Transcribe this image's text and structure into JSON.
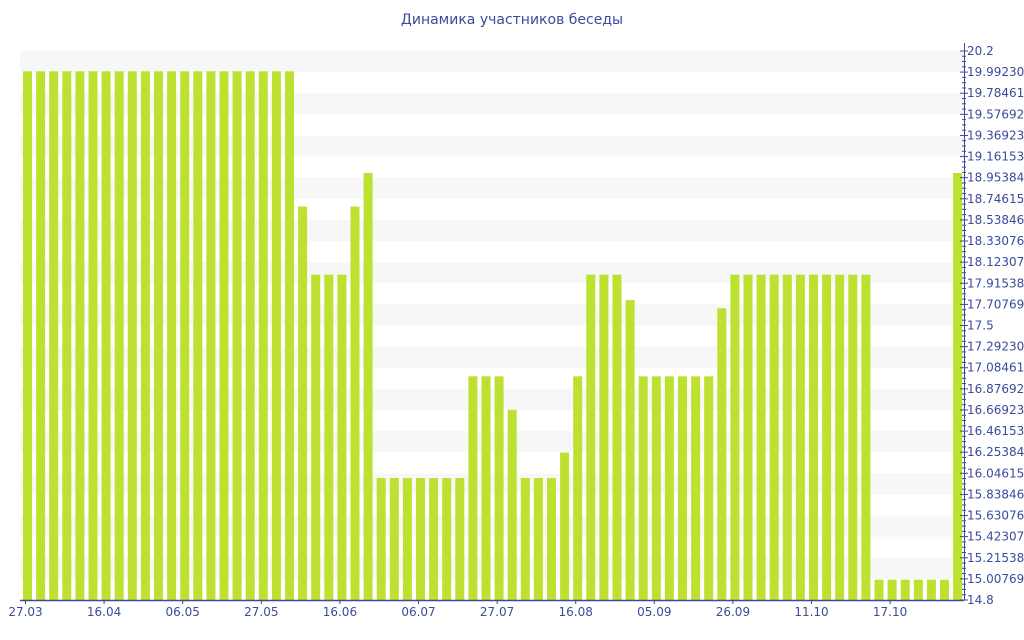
{
  "chart_data": {
    "type": "bar",
    "title": "Динамика участников беседы",
    "xlabel": "",
    "ylabel": "",
    "ylim": [
      14.8,
      20.2
    ],
    "y_axis_position": "right",
    "grid": "alternating horizontal bands",
    "bar_color": "#bde130",
    "axis_color": "#3b4b9b",
    "values": [
      20,
      20,
      20,
      20,
      20,
      20,
      20,
      20,
      20,
      20,
      20,
      20,
      20,
      20,
      20,
      20,
      20,
      20,
      20,
      20,
      20,
      18.67,
      18,
      18,
      18,
      18.67,
      19,
      16,
      16,
      16,
      16,
      16,
      16,
      16,
      17,
      17,
      17,
      16.67,
      16,
      16,
      16,
      16.25,
      17,
      18,
      18,
      18,
      17.75,
      17,
      17,
      17,
      17,
      17,
      17,
      17.67,
      18,
      18,
      18,
      18,
      18,
      18,
      18,
      18,
      18,
      18,
      18,
      15,
      15,
      15,
      15,
      15,
      15,
      19
    ],
    "x_tick_labels": [
      {
        "index": 0,
        "label": "27.03"
      },
      {
        "index": 6,
        "label": "16.04"
      },
      {
        "index": 12,
        "label": "06.05"
      },
      {
        "index": 18,
        "label": "27.05"
      },
      {
        "index": 24,
        "label": "16.06"
      },
      {
        "index": 30,
        "label": "06.07"
      },
      {
        "index": 36,
        "label": "27.07"
      },
      {
        "index": 42,
        "label": "16.08"
      },
      {
        "index": 48,
        "label": "05.09"
      },
      {
        "index": 54,
        "label": "26.09"
      },
      {
        "index": 60,
        "label": "11.10"
      },
      {
        "index": 66,
        "label": "17.10"
      }
    ],
    "y_tick_labels": [
      "14.8",
      "15.00769",
      "15.21538",
      "15.42307",
      "15.63076",
      "15.83846",
      "16.04615",
      "16.25384",
      "16.46153",
      "16.66923",
      "16.87692",
      "17.08461",
      "17.29230",
      "17.5",
      "17.70769",
      "17.91538",
      "18.12307",
      "18.33076",
      "18.53846",
      "18.74615",
      "18.95384",
      "19.16153",
      "19.36923",
      "19.57692",
      "19.78461",
      "19.99230",
      "20.2"
    ]
  }
}
